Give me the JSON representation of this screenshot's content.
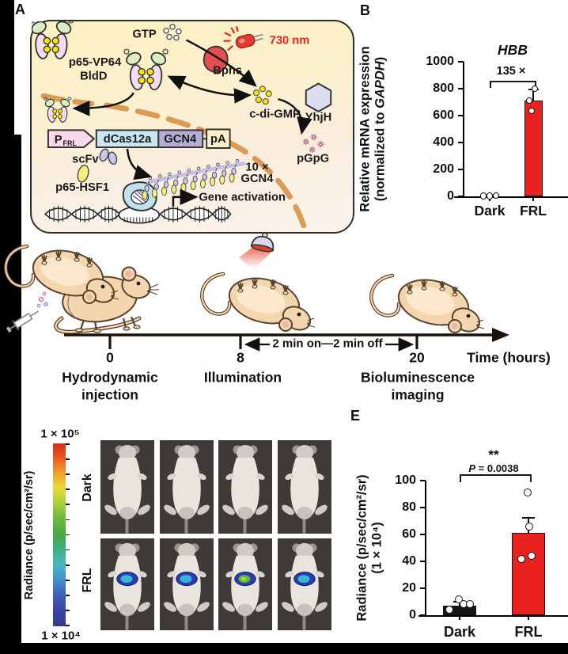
{
  "panel_a": {
    "label": "A",
    "gtp": "GTP",
    "wavelength": "730 nm",
    "bphs": "Bphs",
    "p65_vp64": "p65-VP64",
    "bldd": "BldD",
    "c_di_gmp": "c-di-GMP",
    "yhjh": "YhjH",
    "pgpg": "pGpG",
    "promoter_p": "P",
    "promoter_frl": "FRL",
    "dcas12a": "dCas12a",
    "gcn4": "GCN4",
    "pa": "pA",
    "scfv": "scFv",
    "p65_hsf1": "p65-HSF1",
    "tag_count": "10 ×",
    "tag_gene": "GCN4",
    "gene_activation": "Gene activation"
  },
  "panel_b": {
    "label": "B",
    "title": "HBB",
    "fold_annotation": "135 ×",
    "ylabel_line1": "Relative mRNA expression",
    "ylabel_line2_prefix": "(normalized to ",
    "ylabel_line2_gene": "GAPDH",
    "ylabel_line2_suffix": ")"
  },
  "timeline": {
    "ticks": [
      "0",
      "8",
      "20"
    ],
    "axis_label": "Time (hours)",
    "interval_label": "2 min on—2 min off",
    "stage1_line1": "Hydrodynamic",
    "stage1_line2": "injection",
    "stage2_line1": "Illumination",
    "stage3_line1": "Bioluminescence",
    "stage3_line2": "imaging"
  },
  "panel_d": {
    "colorbar_title": "Radiance (p/sec/cm²/sr)",
    "colorbar_max": "1 × 10⁵",
    "colorbar_min": "1 × 10⁴",
    "row_labels": [
      "Dark",
      "FRL"
    ],
    "columns": 4,
    "spot_cores": [
      "cyan",
      "cyan",
      "green",
      "cyan"
    ]
  },
  "panel_e": {
    "label": "E",
    "significance": "**",
    "p_value_prefix": "P",
    "p_value_rest": " = 0.0038",
    "ylabel_line1": "Radiance (p/sec/cm²/sr)",
    "ylabel_line2": "(1 × 10⁴)"
  },
  "chart_data": [
    {
      "id": "plotB",
      "type": "bar",
      "title": "HBB",
      "categories": [
        "Dark",
        "FRL"
      ],
      "values": [
        5,
        712
      ],
      "errors_upper": [
        0,
        85
      ],
      "points": [
        [
          3,
          4,
          5
        ],
        [
          635,
          712,
          800
        ]
      ],
      "point_offsets": [
        [
          -8,
          0,
          8
        ],
        [
          -2,
          -5,
          2
        ]
      ],
      "bar_colors": [
        "#161616",
        "#e8231f"
      ],
      "yticks": [
        0,
        200,
        400,
        600,
        800,
        1000
      ],
      "ylim": [
        0,
        1000
      ],
      "ylabel": "Relative mRNA expression (normalized to GAPDH)",
      "annotation": "135 ×",
      "grid": false,
      "legend": null
    },
    {
      "id": "plotE",
      "type": "bar",
      "title": "",
      "categories": [
        "Dark",
        "FRL"
      ],
      "values": [
        7,
        61
      ],
      "errors_upper": [
        3,
        11.5
      ],
      "points": [
        [
          4,
          12,
          8,
          8
        ],
        [
          42,
          44,
          66,
          91
        ]
      ],
      "point_offsets": [
        [
          -13,
          -1,
          5,
          13
        ],
        [
          -9,
          4,
          1,
          -1
        ]
      ],
      "bar_colors": [
        "#161616",
        "#e8231f"
      ],
      "yticks": [
        0,
        20,
        40,
        60,
        80,
        100
      ],
      "ylim": [
        0,
        100
      ],
      "ylabel": "Radiance (p/sec/cm²/sr) (1 × 10⁴)",
      "significance": "**",
      "p_value": "P = 0.0038",
      "grid": false,
      "legend": null
    }
  ]
}
